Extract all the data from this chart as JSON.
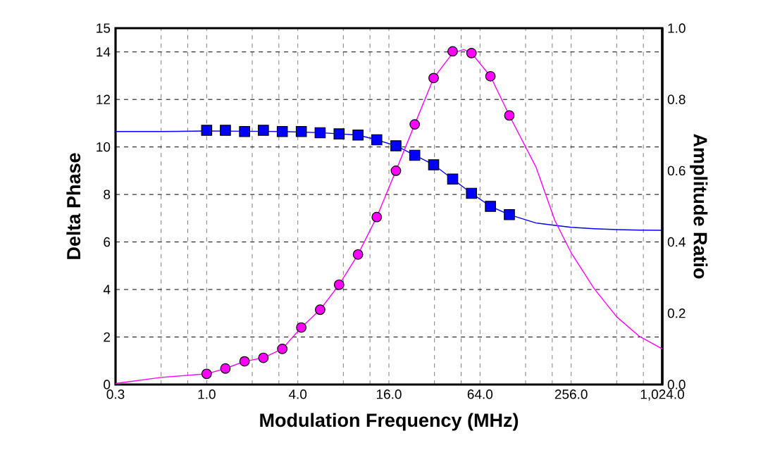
{
  "chart_data": {
    "type": "scatter",
    "xlabel": "Modulation Frequency (MHz)",
    "ylabel": "Delta Phase",
    "y2label": "Amplitude Ratio",
    "log": "x",
    "grid": true,
    "xlim": [
      0.25,
      1024
    ],
    "xticks": [
      {
        "value": 0.25,
        "label": "0.3"
      },
      {
        "value": 0.5,
        "label": null
      },
      {
        "value": 0.75,
        "label": null
      },
      {
        "value": 1,
        "label": "1.0"
      },
      {
        "value": 2,
        "label": null
      },
      {
        "value": 3,
        "label": null
      },
      {
        "value": 4,
        "label": "4.0"
      },
      {
        "value": 8,
        "label": null
      },
      {
        "value": 12,
        "label": null
      },
      {
        "value": 16,
        "label": "16.0"
      },
      {
        "value": 32,
        "label": null
      },
      {
        "value": 48,
        "label": null
      },
      {
        "value": 64,
        "label": "64.0"
      },
      {
        "value": 128,
        "label": null
      },
      {
        "value": 192,
        "label": null
      },
      {
        "value": 256,
        "label": "256.0"
      },
      {
        "value": 512,
        "label": null
      },
      {
        "value": 768,
        "label": null
      },
      {
        "value": 1024,
        "label": "1,024.0"
      }
    ],
    "ylim": [
      0,
      15
    ],
    "yticks": [
      0,
      2,
      4,
      6,
      8,
      10,
      12,
      14,
      15
    ],
    "y2lim": [
      0,
      1
    ],
    "y2ticks": [
      {
        "value": 0,
        "label": "0.0"
      },
      {
        "value": 0.2,
        "label": "0.2"
      },
      {
        "value": 0.4,
        "label": "0.4"
      },
      {
        "value": 0.6,
        "label": "0.6"
      },
      {
        "value": 0.8,
        "label": "0.8"
      },
      {
        "value": 1,
        "label": "1.0"
      }
    ],
    "series": [
      {
        "type": "line",
        "color": "#0000ff",
        "marker": "none",
        "x": [
          0.25,
          0.5,
          1,
          1.78,
          3.16,
          5.62,
          10,
          13.3,
          17.8,
          23.7,
          31.6,
          42.2,
          56.2,
          75,
          100,
          150,
          200,
          256,
          362,
          512,
          724,
          1024
        ],
        "values": [
          10.65,
          10.65,
          10.67,
          10.66,
          10.65,
          10.6,
          10.5,
          10.3,
          10.05,
          9.65,
          9.25,
          8.65,
          8.05,
          7.5,
          7.15,
          6.8,
          6.7,
          6.62,
          6.56,
          6.52,
          6.5,
          6.49
        ]
      },
      {
        "type": "line",
        "color": "#ff00ff",
        "marker": "none",
        "axis": "y2",
        "x": [
          0.25,
          0.5,
          1,
          1.33,
          1.78,
          2.37,
          3.16,
          4.22,
          5.62,
          7.5,
          10,
          13.3,
          17.8,
          23.7,
          31.6,
          42.2,
          50,
          56.2,
          75,
          100,
          150,
          200,
          256,
          362,
          512,
          724,
          1024
        ],
        "values": [
          0.003,
          0.02,
          0.03,
          0.045,
          0.065,
          0.075,
          0.1,
          0.16,
          0.21,
          0.28,
          0.365,
          0.47,
          0.6,
          0.73,
          0.86,
          0.93,
          0.94,
          0.93,
          0.865,
          0.755,
          0.61,
          0.46,
          0.37,
          0.27,
          0.19,
          0.135,
          0.1
        ]
      },
      {
        "color": "#0000ff",
        "marker": "square",
        "x": [
          1,
          1.33,
          1.78,
          2.37,
          3.16,
          4.22,
          5.62,
          7.5,
          10,
          13.3,
          17.8,
          23.7,
          31.6,
          42.2,
          56.2,
          75,
          100
        ],
        "values": [
          10.7,
          10.7,
          10.65,
          10.7,
          10.65,
          10.65,
          10.6,
          10.55,
          10.5,
          10.3,
          10.05,
          9.65,
          9.25,
          8.65,
          8.05,
          7.5,
          7.15
        ]
      },
      {
        "color": "#ff00ff",
        "marker": "circle",
        "axis": "y2",
        "x": [
          1,
          1.33,
          1.78,
          2.37,
          3.16,
          4.22,
          5.62,
          7.5,
          10,
          13.3,
          17.8,
          23.7,
          31.6,
          42.2,
          56.2,
          75,
          100
        ],
        "values": [
          0.03,
          0.045,
          0.065,
          0.075,
          0.1,
          0.16,
          0.21,
          0.28,
          0.365,
          0.47,
          0.6,
          0.73,
          0.86,
          0.935,
          0.93,
          0.865,
          0.755
        ]
      }
    ]
  }
}
